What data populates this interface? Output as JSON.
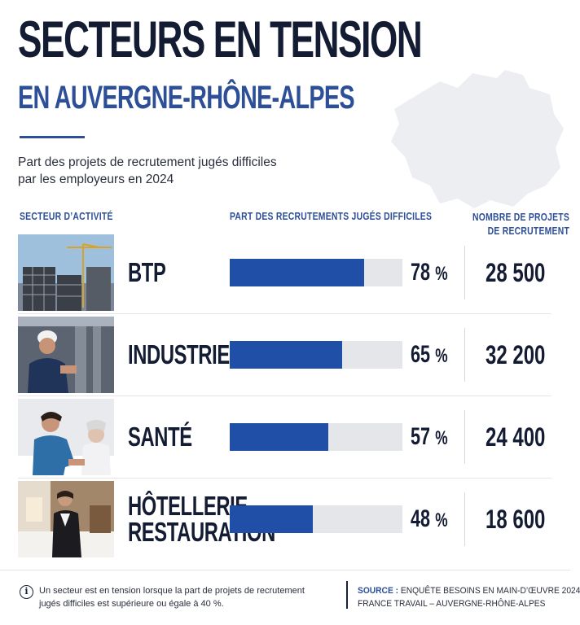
{
  "header": {
    "title": "SECTEURS EN TENSION",
    "subtitle": "EN AUVERGNE-RHÔNE-ALPES",
    "description_line1": "Part des projets de recrutement jugés difficiles",
    "description_line2": "par les employeurs en 2024"
  },
  "columns": {
    "sector": "SECTEUR D’ACTIVITÉ",
    "share": "PART DES RECRUTEMENTS JUGÉS DIFFICILES",
    "count_line1": "NOMBRE DE PROJETS",
    "count_line2": "DE RECRUTEMENT"
  },
  "chart_data": {
    "type": "bar",
    "orientation": "horizontal",
    "categories": [
      "BTP",
      "INDUSTRIE",
      "SANTÉ",
      "HÔTELLERIE\nRESTAURATION"
    ],
    "series": [
      {
        "values": [
          78,
          65,
          57,
          48
        ]
      }
    ],
    "value_labels": [
      "78",
      "65",
      "57",
      "48"
    ],
    "unit": "%",
    "xlim": [
      0,
      100
    ],
    "recruitment_projects": [
      "28 500",
      "32 200",
      "24 400",
      "18 600"
    ],
    "colors": {
      "bar": "#1f4fa6",
      "track": "#e4e6ea",
      "accent": "#2d4f98",
      "text": "#141c34"
    },
    "grid": false
  },
  "photos": [
    {
      "icon": "construction-site-photo"
    },
    {
      "icon": "industry-worker-photo"
    },
    {
      "icon": "healthcare-nurse-photo"
    },
    {
      "icon": "hotel-housekeeping-photo"
    }
  ],
  "footer": {
    "note_line1": "Un secteur est en tension lorsque la part de projets de recrutement",
    "note_line2": "jugés difficiles est supérieure ou égale à 40 %.",
    "source_label": "SOURCE :",
    "source_line1": "ENQUÊTE BESOINS EN MAIN-D’ŒUVRE 2024",
    "source_line2": "FRANCE TRAVAIL – AUVERGNE-RHÔNE-ALPES",
    "info_icon": "info-icon"
  }
}
